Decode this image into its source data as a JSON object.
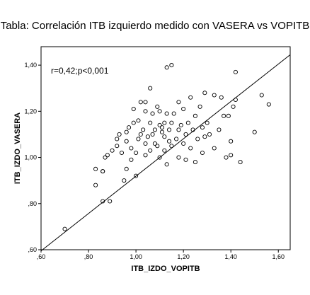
{
  "chart_data": {
    "type": "scatter",
    "title": "Tabla: Correlación ITB izquierdo medido con VASERA vs VOPITB",
    "xlabel": "ITB_IZDO_VOPITB",
    "ylabel": "ITB_IZDO_VASERA",
    "annotation": "r=0,42;p<0,001",
    "xlim": [
      0.6,
      1.65
    ],
    "ylim": [
      0.6,
      1.48
    ],
    "x_ticks": [
      0.6,
      0.8,
      1.0,
      1.2,
      1.4,
      1.6
    ],
    "x_tick_labels": [
      ",60",
      ",80",
      "1,00",
      "1,20",
      "1,40",
      "1,60"
    ],
    "y_ticks": [
      0.6,
      0.8,
      1.0,
      1.2,
      1.4
    ],
    "y_tick_labels": [
      ",60",
      ",80",
      "1,00",
      "1,20",
      "1,40"
    ],
    "grid": false,
    "fit_line": {
      "x": [
        0.6,
        1.65
      ],
      "y": [
        0.595,
        1.445
      ]
    },
    "points": [
      {
        "x": 0.7,
        "y": 0.69
      },
      {
        "x": 0.83,
        "y": 0.88
      },
      {
        "x": 0.83,
        "y": 0.95
      },
      {
        "x": 0.86,
        "y": 0.94
      },
      {
        "x": 0.86,
        "y": 0.94
      },
      {
        "x": 0.86,
        "y": 0.81
      },
      {
        "x": 0.87,
        "y": 1.0
      },
      {
        "x": 0.88,
        "y": 1.01
      },
      {
        "x": 0.89,
        "y": 0.81
      },
      {
        "x": 0.9,
        "y": 1.03
      },
      {
        "x": 0.92,
        "y": 1.05
      },
      {
        "x": 0.92,
        "y": 1.08
      },
      {
        "x": 0.93,
        "y": 1.1
      },
      {
        "x": 0.94,
        "y": 1.02
      },
      {
        "x": 0.95,
        "y": 0.9
      },
      {
        "x": 0.96,
        "y": 0.95
      },
      {
        "x": 0.96,
        "y": 1.07
      },
      {
        "x": 0.96,
        "y": 1.11
      },
      {
        "x": 0.97,
        "y": 1.13
      },
      {
        "x": 0.98,
        "y": 1.04
      },
      {
        "x": 0.98,
        "y": 0.99
      },
      {
        "x": 0.99,
        "y": 1.21
      },
      {
        "x": 0.99,
        "y": 1.15
      },
      {
        "x": 1.0,
        "y": 0.92
      },
      {
        "x": 1.0,
        "y": 1.02
      },
      {
        "x": 1.01,
        "y": 1.08
      },
      {
        "x": 1.01,
        "y": 1.16
      },
      {
        "x": 1.02,
        "y": 1.24
      },
      {
        "x": 1.02,
        "y": 1.1
      },
      {
        "x": 1.03,
        "y": 1.12
      },
      {
        "x": 1.04,
        "y": 1.01
      },
      {
        "x": 1.04,
        "y": 1.06
      },
      {
        "x": 1.04,
        "y": 1.2
      },
      {
        "x": 1.04,
        "y": 1.24
      },
      {
        "x": 1.05,
        "y": 1.09
      },
      {
        "x": 1.06,
        "y": 1.15
      },
      {
        "x": 1.06,
        "y": 1.3
      },
      {
        "x": 1.06,
        "y": 1.03
      },
      {
        "x": 1.07,
        "y": 1.19
      },
      {
        "x": 1.07,
        "y": 1.1
      },
      {
        "x": 1.08,
        "y": 1.12
      },
      {
        "x": 1.08,
        "y": 1.06
      },
      {
        "x": 1.09,
        "y": 1.22
      },
      {
        "x": 1.09,
        "y": 1.05
      },
      {
        "x": 1.1,
        "y": 1.14
      },
      {
        "x": 1.1,
        "y": 1.2
      },
      {
        "x": 1.1,
        "y": 1.0
      },
      {
        "x": 1.11,
        "y": 1.13
      },
      {
        "x": 1.11,
        "y": 1.11
      },
      {
        "x": 1.12,
        "y": 1.09
      },
      {
        "x": 1.12,
        "y": 1.15
      },
      {
        "x": 1.12,
        "y": 1.03
      },
      {
        "x": 1.13,
        "y": 1.19
      },
      {
        "x": 1.13,
        "y": 1.39
      },
      {
        "x": 1.13,
        "y": 0.97
      },
      {
        "x": 1.14,
        "y": 1.12
      },
      {
        "x": 1.14,
        "y": 1.07
      },
      {
        "x": 1.15,
        "y": 1.4
      },
      {
        "x": 1.15,
        "y": 1.15
      },
      {
        "x": 1.15,
        "y": 1.05
      },
      {
        "x": 1.16,
        "y": 1.19
      },
      {
        "x": 1.17,
        "y": 1.08
      },
      {
        "x": 1.18,
        "y": 1.24
      },
      {
        "x": 1.18,
        "y": 1.12
      },
      {
        "x": 1.18,
        "y": 1.0
      },
      {
        "x": 1.19,
        "y": 1.14
      },
      {
        "x": 1.2,
        "y": 1.06
      },
      {
        "x": 1.2,
        "y": 1.21
      },
      {
        "x": 1.21,
        "y": 1.1
      },
      {
        "x": 1.21,
        "y": 0.99
      },
      {
        "x": 1.22,
        "y": 1.15
      },
      {
        "x": 1.23,
        "y": 1.26
      },
      {
        "x": 1.23,
        "y": 1.04
      },
      {
        "x": 1.24,
        "y": 1.12
      },
      {
        "x": 1.25,
        "y": 1.18
      },
      {
        "x": 1.25,
        "y": 0.98
      },
      {
        "x": 1.26,
        "y": 1.08
      },
      {
        "x": 1.27,
        "y": 1.22
      },
      {
        "x": 1.28,
        "y": 1.13
      },
      {
        "x": 1.28,
        "y": 1.02
      },
      {
        "x": 1.29,
        "y": 1.28
      },
      {
        "x": 1.29,
        "y": 1.09
      },
      {
        "x": 1.3,
        "y": 1.15
      },
      {
        "x": 1.31,
        "y": 1.1
      },
      {
        "x": 1.33,
        "y": 1.27
      },
      {
        "x": 1.33,
        "y": 1.04
      },
      {
        "x": 1.35,
        "y": 1.12
      },
      {
        "x": 1.36,
        "y": 1.26
      },
      {
        "x": 1.37,
        "y": 1.18
      },
      {
        "x": 1.38,
        "y": 1.0
      },
      {
        "x": 1.39,
        "y": 1.18
      },
      {
        "x": 1.4,
        "y": 1.07
      },
      {
        "x": 1.4,
        "y": 1.01
      },
      {
        "x": 1.41,
        "y": 1.22
      },
      {
        "x": 1.42,
        "y": 1.25
      },
      {
        "x": 1.42,
        "y": 1.37
      },
      {
        "x": 1.44,
        "y": 0.98
      },
      {
        "x": 1.5,
        "y": 1.11
      },
      {
        "x": 1.53,
        "y": 1.27
      },
      {
        "x": 1.56,
        "y": 1.23
      }
    ]
  }
}
